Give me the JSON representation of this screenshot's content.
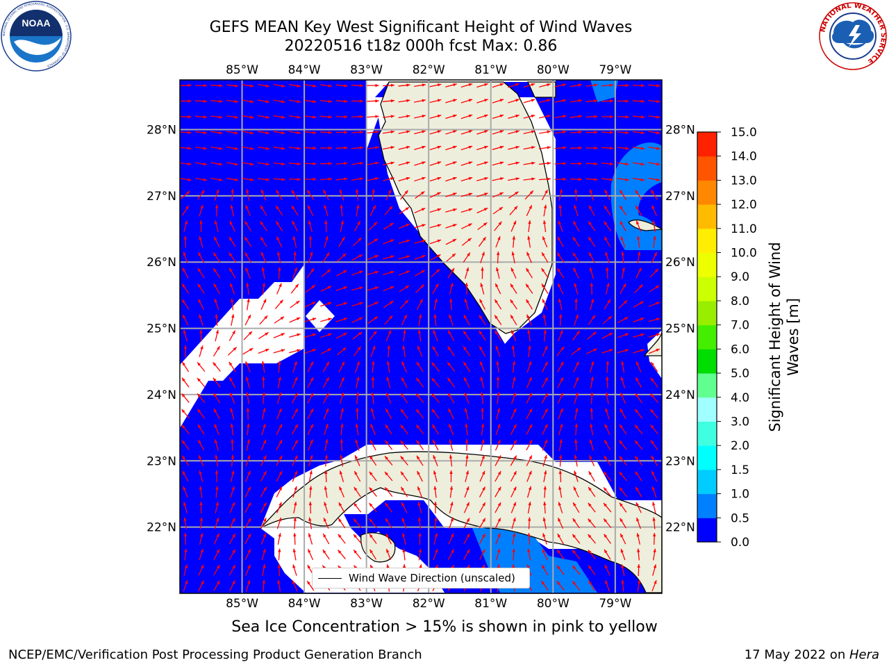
{
  "title_line1": "GEFS MEAN Key West Significant Height of Wind Waves",
  "title_line2": "20220516 t18z 000h fcst   Max: 0.86",
  "map": {
    "lon_labels": [
      "85°W",
      "84°W",
      "83°W",
      "82°W",
      "81°W",
      "80°W",
      "79°W"
    ],
    "lat_labels": [
      "28°N",
      "27°N",
      "26°N",
      "25°N",
      "24°N",
      "23°N",
      "22°N"
    ],
    "lon_values": [
      -85,
      -84,
      -83,
      -82,
      -81,
      -80,
      -79
    ],
    "lat_values": [
      28,
      27,
      26,
      25,
      24,
      23,
      22
    ],
    "lon_range": [
      -86.0,
      -78.25
    ],
    "lat_range": [
      21.0,
      28.75
    ],
    "grid": true,
    "ocean_color": "#0000ff",
    "land_color": "#eeeedd",
    "arrow_color": "#ff0000",
    "higher_wave_color": "#0080ff"
  },
  "legend": {
    "label": "Wind Wave Direction (unscaled)",
    "placement": "bottom-center"
  },
  "colorbar": {
    "title": "Significant Height of Wind Waves [m]",
    "ticks": [
      "0.0",
      "0.5",
      "1.0",
      "1.5",
      "2.0",
      "3.0",
      "4.0",
      "5.0",
      "6.0",
      "7.0",
      "8.0",
      "9.0",
      "10.0",
      "11.0",
      "12.0",
      "13.0",
      "14.0",
      "15.0"
    ],
    "colors": [
      "#0000ff",
      "#0080ff",
      "#00ccff",
      "#00ffff",
      "#40ffe0",
      "#a0ffff",
      "#60ff90",
      "#00dd00",
      "#44ee00",
      "#99ee00",
      "#ccff00",
      "#eeff00",
      "#ffee00",
      "#ffbb00",
      "#ff8800",
      "#ff5500",
      "#ff2200"
    ]
  },
  "subcaption": "Sea Ice Concentration > 15% is shown in pink to yellow",
  "footer": {
    "left": "NCEP/EMC/Verification Post Processing Product Generation Branch",
    "right_date": "17 May 2022 on ",
    "right_machine": "Hera"
  },
  "logos": {
    "left": "NOAA",
    "left_ring_text": "NATIONAL OCEANIC AND ATMOSPHERIC ADMINISTRATION · U.S. DEPARTMENT OF COMMERCE",
    "right_ring_text": "NATIONAL WEATHER SERVICE"
  }
}
